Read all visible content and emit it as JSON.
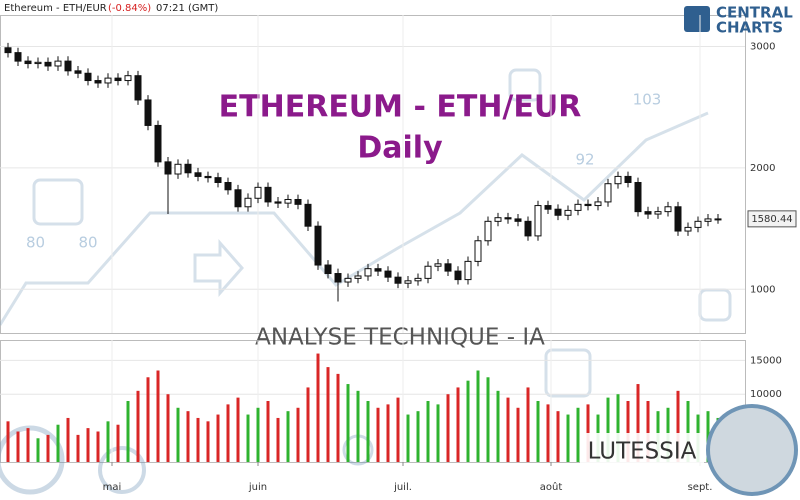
{
  "chart_data": {
    "type": "candlestick",
    "header": {
      "title": "Ethereum - ETH/EUR",
      "change": "(-0.84%)",
      "time": "07:21 (GMT)"
    },
    "logo": [
      "CENTRAL",
      "CHARTS"
    ],
    "watermark": {
      "title": "ETHEREUM - ETH/EUR",
      "subtitle": "Daily",
      "analysis": "ANALYSE TECHNIQUE - IA",
      "brand": "LUTESSIA"
    },
    "decor_numbers": [
      80,
      80,
      92,
      103
    ],
    "xlim": [
      -0.8,
      73.7
    ],
    "xticks": [
      {
        "value": 10.4,
        "label": "mai"
      },
      {
        "value": 25,
        "label": "juin"
      },
      {
        "value": 39.5,
        "label": "juil."
      },
      {
        "value": 54.3,
        "label": "août"
      },
      {
        "value": 69.2,
        "label": "sept."
      }
    ],
    "ylim": [
      640,
      3260
    ],
    "yticks": [
      1000,
      2000,
      3000
    ],
    "grid": true,
    "last_price": 1580.44,
    "up_color": "#ffffff",
    "down_color": "#111111",
    "open": [
      2990,
      2950,
      2880,
      2860,
      2870,
      2840,
      2880,
      2800,
      2780,
      2720,
      2700,
      2740,
      2720,
      2760,
      2560,
      2350,
      2050,
      1950,
      2030,
      1960,
      1930,
      1920,
      1880,
      1820,
      1680,
      1750,
      1840,
      1720,
      1710,
      1740,
      1700,
      1520,
      1200,
      1130,
      1060,
      1090,
      1110,
      1170,
      1150,
      1100,
      1050,
      1070,
      1090,
      1190,
      1210,
      1150,
      1080,
      1230,
      1400,
      1560,
      1590,
      1580,
      1560,
      1440,
      1690,
      1660,
      1610,
      1650,
      1700,
      1690,
      1720,
      1870,
      1930,
      1880,
      1640,
      1620,
      1640,
      1680,
      1480,
      1510,
      1560,
      1580
    ],
    "high": [
      3030,
      2990,
      2920,
      2910,
      2910,
      2920,
      2920,
      2840,
      2820,
      2760,
      2780,
      2780,
      2800,
      2800,
      2600,
      2390,
      2090,
      2070,
      2070,
      2000,
      1970,
      1960,
      1920,
      1860,
      1790,
      1880,
      1880,
      1760,
      1780,
      1780,
      1740,
      1560,
      1240,
      1170,
      1130,
      1150,
      1210,
      1210,
      1190,
      1140,
      1110,
      1130,
      1230,
      1250,
      1250,
      1190,
      1270,
      1440,
      1600,
      1630,
      1630,
      1620,
      1600,
      1730,
      1730,
      1700,
      1690,
      1740,
      1740,
      1760,
      1910,
      1970,
      1970,
      1920,
      1680,
      1680,
      1720,
      1720,
      1550,
      1600,
      1620,
      1620
    ],
    "low": [
      2910,
      2840,
      2820,
      2820,
      2800,
      2800,
      2760,
      2740,
      2680,
      2660,
      2660,
      2680,
      2680,
      2520,
      2310,
      2010,
      1620,
      1910,
      1920,
      1890,
      1880,
      1840,
      1780,
      1640,
      1640,
      1710,
      1680,
      1670,
      1670,
      1660,
      1480,
      1160,
      1090,
      900,
      1020,
      1050,
      1070,
      1110,
      1060,
      1010,
      1010,
      1030,
      1050,
      1150,
      1110,
      1040,
      1040,
      1190,
      1360,
      1520,
      1540,
      1520,
      1400,
      1400,
      1620,
      1570,
      1570,
      1610,
      1650,
      1650,
      1680,
      1830,
      1840,
      1600,
      1580,
      1580,
      1600,
      1440,
      1440,
      1470,
      1520,
      1540
    ],
    "close": [
      2950,
      2880,
      2860,
      2870,
      2840,
      2880,
      2800,
      2780,
      2720,
      2700,
      2740,
      2720,
      2760,
      2560,
      2350,
      2050,
      1950,
      2030,
      1960,
      1930,
      1920,
      1880,
      1820,
      1680,
      1750,
      1840,
      1720,
      1710,
      1740,
      1700,
      1520,
      1200,
      1130,
      1060,
      1090,
      1110,
      1170,
      1150,
      1100,
      1050,
      1070,
      1090,
      1190,
      1210,
      1150,
      1080,
      1230,
      1400,
      1560,
      1590,
      1580,
      1560,
      1440,
      1690,
      1660,
      1610,
      1650,
      1700,
      1690,
      1720,
      1870,
      1930,
      1880,
      1640,
      1620,
      1640,
      1680,
      1480,
      1510,
      1560,
      1580,
      1580
    ],
    "volume": {
      "ylim": [
        0,
        18000
      ],
      "yticks": [
        10000,
        15000
      ],
      "up_color": "#2fb32f",
      "down_color": "#d92626",
      "values": [
        6000,
        4500,
        5000,
        3500,
        4000,
        5500,
        6500,
        4000,
        5000,
        4500,
        6000,
        5500,
        9000,
        10500,
        12500,
        13500,
        10000,
        8000,
        7500,
        6500,
        6000,
        7000,
        8500,
        9500,
        7000,
        8000,
        9000,
        6500,
        7500,
        8000,
        11000,
        16000,
        14000,
        13000,
        11500,
        10500,
        9000,
        8000,
        8500,
        9500,
        7000,
        7500,
        9000,
        8500,
        10000,
        11000,
        12000,
        13500,
        12500,
        10500,
        9500,
        8000,
        11000,
        9000,
        8500,
        7500,
        7000,
        8000,
        8500,
        7000,
        9500,
        10000,
        9000,
        11500,
        9000,
        7500,
        8000,
        10500,
        9000,
        7000,
        7500,
        6500
      ]
    }
  }
}
